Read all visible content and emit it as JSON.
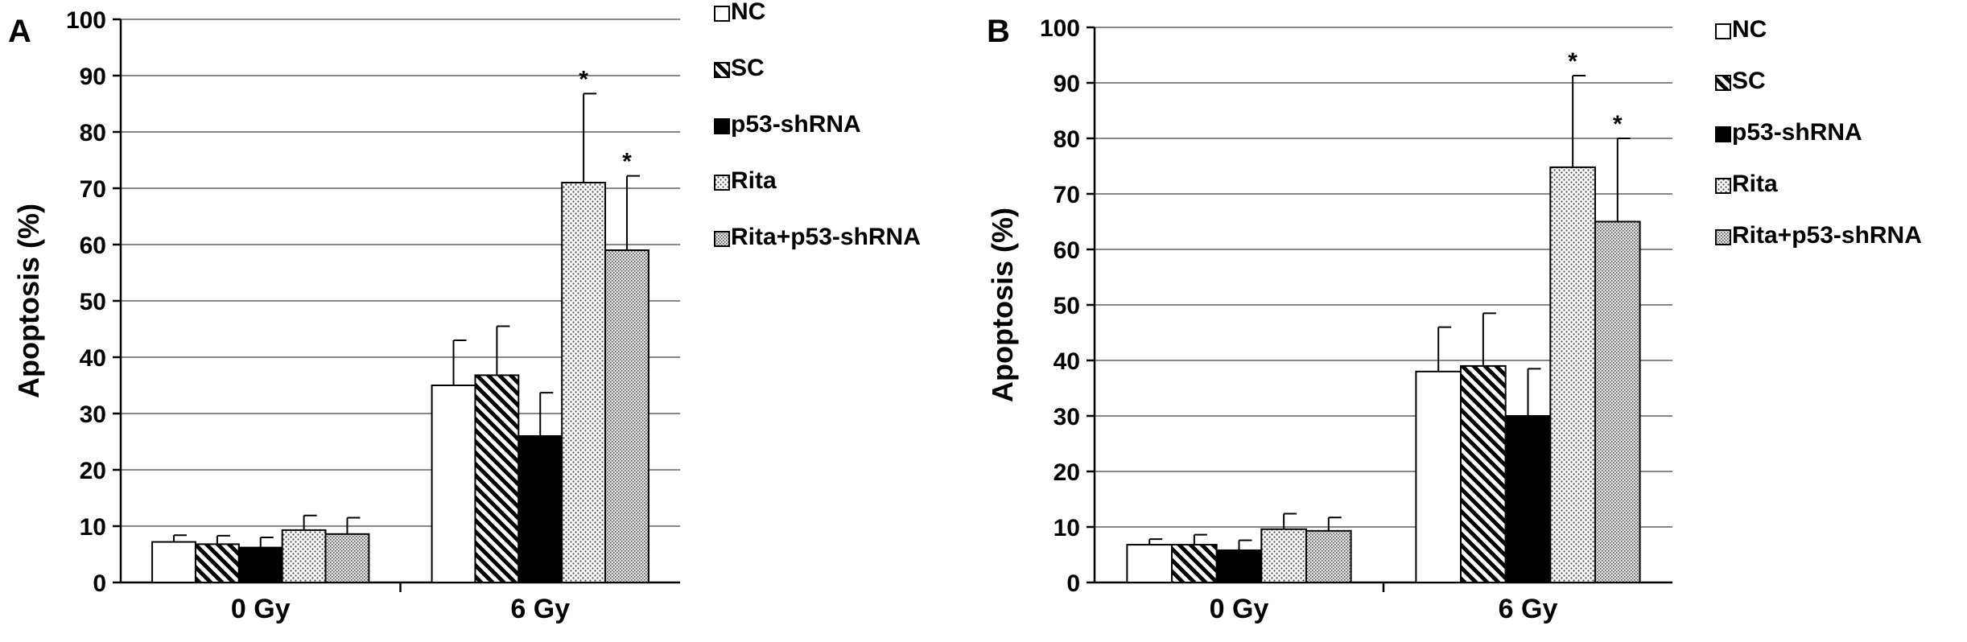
{
  "chart_data": [
    {
      "type": "bar",
      "panel_label": "A",
      "ylabel": "Apoptosis (%)",
      "ylim": [
        0,
        100
      ],
      "y_ticks": [
        "0",
        "10",
        "20",
        "30",
        "40",
        "50",
        "60",
        "70",
        "80",
        "90",
        "100"
      ],
      "categories": [
        "0 Gy",
        "6 Gy"
      ],
      "grid": true,
      "legend_position": "right",
      "series": [
        {
          "name": "NC",
          "pattern": "white",
          "values": [
            7.2,
            35.0
          ],
          "errors": [
            1.2,
            8.0
          ],
          "stars": [
            "",
            ""
          ]
        },
        {
          "name": "SC",
          "pattern": "diagonal-stripes",
          "values": [
            6.8,
            36.8
          ],
          "errors": [
            1.5,
            8.7
          ],
          "stars": [
            "",
            ""
          ]
        },
        {
          "name": "p53-shRNA",
          "pattern": "black",
          "values": [
            6.2,
            26.0
          ],
          "errors": [
            1.8,
            7.7
          ],
          "stars": [
            "",
            ""
          ]
        },
        {
          "name": "Rita",
          "pattern": "dots",
          "values": [
            9.3,
            71.0
          ],
          "errors": [
            2.6,
            15.8
          ],
          "stars": [
            "",
            "*"
          ]
        },
        {
          "name": "Rita+p53-shRNA",
          "pattern": "dense-dots",
          "values": [
            8.6,
            59.0
          ],
          "errors": [
            2.9,
            13.2
          ],
          "stars": [
            "",
            "*"
          ]
        }
      ]
    },
    {
      "type": "bar",
      "panel_label": "B",
      "ylabel": "Apoptosis (%)",
      "ylim": [
        0,
        100
      ],
      "y_ticks": [
        "0",
        "10",
        "20",
        "30",
        "40",
        "50",
        "60",
        "70",
        "80",
        "90",
        "100"
      ],
      "categories": [
        "0 Gy",
        "6 Gy"
      ],
      "grid": true,
      "legend_position": "right",
      "series": [
        {
          "name": "NC",
          "pattern": "white",
          "values": [
            6.8,
            38.0
          ],
          "errors": [
            1.0,
            8.0
          ],
          "stars": [
            "",
            ""
          ]
        },
        {
          "name": "SC",
          "pattern": "diagonal-stripes",
          "values": [
            6.8,
            39.0
          ],
          "errors": [
            1.8,
            9.5
          ],
          "stars": [
            "",
            ""
          ]
        },
        {
          "name": "p53-shRNA",
          "pattern": "black",
          "values": [
            5.8,
            30.0
          ],
          "errors": [
            1.8,
            8.5
          ],
          "stars": [
            "",
            ""
          ]
        },
        {
          "name": "Rita",
          "pattern": "dots",
          "values": [
            9.6,
            74.8
          ],
          "errors": [
            2.8,
            16.5
          ],
          "stars": [
            "",
            "*"
          ]
        },
        {
          "name": "Rita+p53-shRNA",
          "pattern": "dense-dots",
          "values": [
            9.3,
            65.0
          ],
          "errors": [
            2.4,
            15.0
          ],
          "stars": [
            "",
            "*"
          ]
        }
      ]
    }
  ]
}
